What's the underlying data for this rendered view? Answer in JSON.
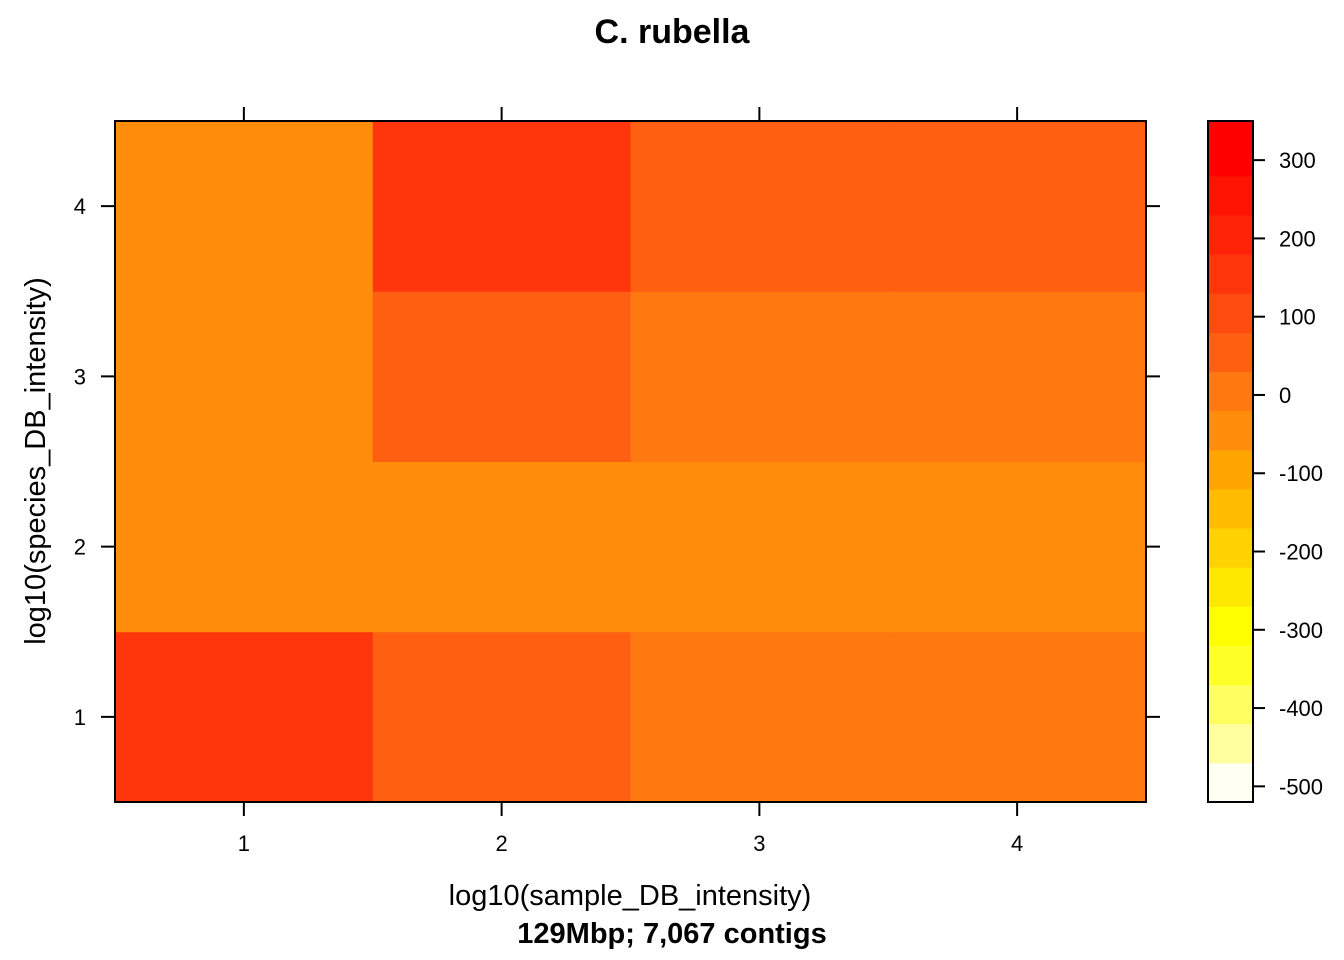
{
  "chart_data": {
    "type": "heatmap",
    "title": "C. rubella",
    "xlabel": "log10(sample_DB_intensity)",
    "ylabel": "log10(species_DB_intensity)",
    "subtitle": "129Mbp; 7,067 contigs",
    "x": [
      1,
      2,
      3,
      4
    ],
    "y": [
      1,
      2,
      3,
      4
    ],
    "xlim": [
      0.5,
      4.5
    ],
    "ylim": [
      0.5,
      4.5
    ],
    "x_ticks": [
      "1",
      "2",
      "3",
      "4"
    ],
    "y_ticks": [
      "1",
      "2",
      "3",
      "4"
    ],
    "z": [
      [
        130,
        60,
        20,
        20
      ],
      [
        -70,
        -70,
        -70,
        -70
      ],
      [
        -70,
        60,
        20,
        20
      ],
      [
        -70,
        170,
        70,
        70
      ]
    ],
    "colorbar": {
      "range": [
        -520,
        350
      ],
      "ticks": [
        300,
        200,
        100,
        0,
        -100,
        -200,
        -300,
        -400,
        -500
      ],
      "tick_labels": [
        "300",
        "200",
        "100",
        "0",
        "-100",
        "-200",
        "-300",
        "-400",
        "-500"
      ],
      "levels": [
        {
          "from": -520,
          "to": -470,
          "color": "#FFFFF2"
        },
        {
          "from": -470,
          "to": -420,
          "color": "#FFFFA0"
        },
        {
          "from": -420,
          "to": -370,
          "color": "#FFFF60"
        },
        {
          "from": -370,
          "to": -320,
          "color": "#FFFF28"
        },
        {
          "from": -320,
          "to": -270,
          "color": "#FFFF00"
        },
        {
          "from": -270,
          "to": -220,
          "color": "#FFE800"
        },
        {
          "from": -220,
          "to": -170,
          "color": "#FFD200"
        },
        {
          "from": -170,
          "to": -120,
          "color": "#FFBC00"
        },
        {
          "from": -120,
          "to": -70,
          "color": "#FFA500"
        },
        {
          "from": -70,
          "to": -20,
          "color": "#FF8C0A"
        },
        {
          "from": -20,
          "to": 30,
          "color": "#FF7810"
        },
        {
          "from": 30,
          "to": 80,
          "color": "#FF5F10"
        },
        {
          "from": 80,
          "to": 130,
          "color": "#FF4A10"
        },
        {
          "from": 130,
          "to": 180,
          "color": "#FF350C"
        },
        {
          "from": 180,
          "to": 230,
          "color": "#FF2408"
        },
        {
          "from": 230,
          "to": 280,
          "color": "#FF1404"
        },
        {
          "from": 280,
          "to": 350,
          "color": "#FF0000"
        }
      ]
    }
  }
}
